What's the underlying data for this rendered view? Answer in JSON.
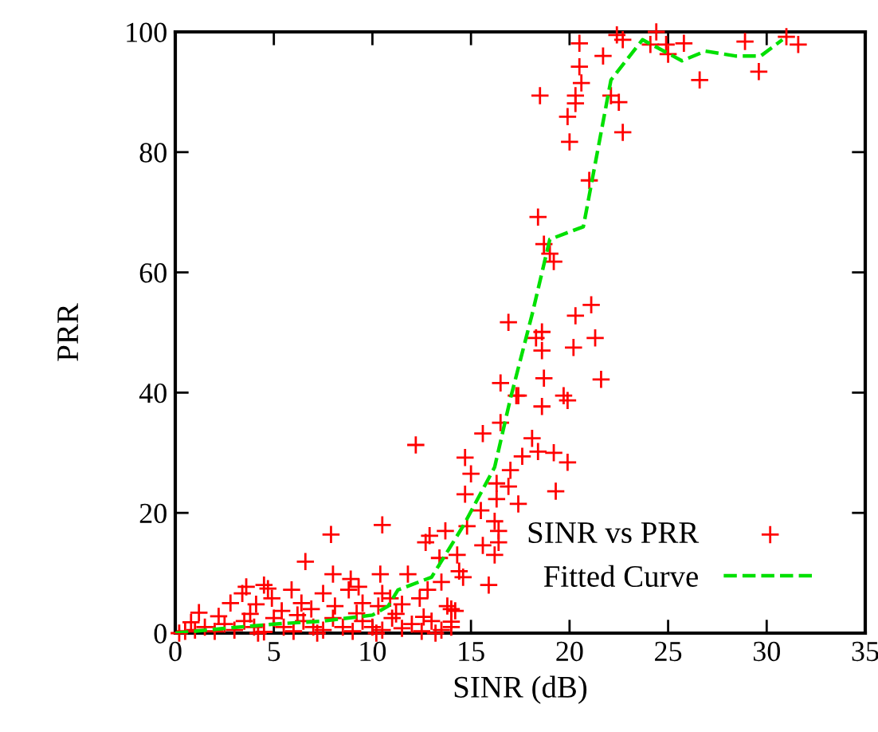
{
  "chart_data": {
    "type": "scatter",
    "xlabel": "SINR (dB)",
    "ylabel": "PRR",
    "xlim": [
      0,
      35
    ],
    "ylim": [
      0,
      100
    ],
    "xticks": [
      0,
      5,
      10,
      15,
      20,
      25,
      30,
      35
    ],
    "yticks": [
      0,
      20,
      40,
      60,
      80,
      100
    ],
    "grid": false,
    "legend": "bottom right",
    "series": [
      {
        "name": "SINR vs PRR",
        "marker": "cross",
        "color": "#ff0000",
        "x": [
          20.5,
          22.4,
          22.7,
          24.4,
          24.1,
          24.9,
          25.0,
          25.8,
          28.9,
          29.6,
          31.0,
          31.6,
          26.6,
          21.7,
          20.5,
          20.6,
          18.5,
          20.3,
          20.3,
          22.1,
          22.5,
          19.9,
          20.0,
          22.7,
          21.0,
          18.4,
          18.7,
          19.0,
          19.2,
          21.1,
          20.3,
          21.3,
          18.3,
          18.6,
          18.6,
          20.2,
          21.6,
          18.7,
          19.7,
          19.9,
          18.6,
          17.4,
          16.9,
          16.5,
          17.3,
          16.5,
          15.6,
          18.1,
          18.4,
          19.2,
          17.6,
          19.9,
          14.7,
          12.2,
          15.0,
          17.0,
          16.3,
          16.9,
          19.3,
          14.7,
          16.3,
          17.4,
          15.5,
          16.2,
          14.8,
          16.4,
          13.7,
          12.9,
          12.7,
          15.6,
          16.4,
          16.2,
          13.4,
          14.3,
          14.4,
          14.6,
          13.5,
          11.8,
          15.9,
          14.0,
          14.0,
          12.6,
          7.9,
          10.5,
          6.6,
          8.0,
          8.9,
          10.4,
          8.8,
          4.5,
          4.7,
          3.6,
          5.9,
          3.4,
          2.8,
          4.1,
          4.9,
          5.4,
          7.5,
          9.3,
          6.4,
          1.2,
          6.9,
          8.1,
          9.5,
          10.5,
          10.9,
          10.3,
          11.5,
          12.4,
          12.8,
          13.8,
          14.2,
          0.2,
          0.5,
          1.0,
          1.5,
          2.0,
          2.5,
          3.0,
          3.5,
          4.0,
          4.5,
          5.0,
          5.5,
          6.0,
          6.5,
          7.0,
          7.5,
          8.0,
          8.5,
          9.0,
          9.5,
          10.0,
          10.5,
          11.0,
          11.5,
          12.0,
          12.5,
          13.0,
          13.5,
          14.0,
          0.8,
          2.2,
          3.8,
          6.2,
          9.2,
          11.2,
          4.2,
          7.2,
          10.2,
          13.2
        ],
        "values": [
          98.1,
          99.5,
          98.7,
          100,
          97.9,
          97.9,
          96.3,
          98.1,
          98.4,
          93.4,
          99.2,
          97.9,
          92.0,
          96.0,
          94.2,
          91.5,
          89.4,
          89.4,
          88.1,
          89.4,
          88.3,
          85.9,
          81.7,
          83.3,
          75.3,
          69.2,
          64.7,
          63.1,
          61.8,
          54.6,
          52.8,
          49.1,
          49.1,
          50.1,
          47.0,
          47.5,
          42.2,
          42.4,
          39.5,
          38.7,
          37.7,
          39.5,
          51.7,
          41.6,
          39.5,
          35.0,
          33.2,
          32.4,
          30.2,
          30.0,
          29.4,
          28.4,
          29.2,
          31.3,
          26.5,
          27.1,
          24.9,
          24.4,
          23.6,
          23.1,
          22.3,
          21.5,
          20.4,
          18.6,
          17.8,
          17.0,
          17.0,
          16.2,
          15.1,
          14.6,
          15.1,
          13.0,
          12.5,
          13.0,
          10.3,
          9.3,
          8.5,
          9.8,
          8.0,
          4.0,
          1.9,
          2.7,
          16.4,
          18.0,
          11.9,
          9.8,
          9.0,
          9.8,
          7.2,
          8.0,
          7.4,
          7.7,
          7.2,
          6.6,
          5.0,
          4.8,
          5.8,
          3.7,
          6.6,
          7.7,
          5.0,
          3.4,
          4.0,
          4.5,
          5.0,
          6.6,
          5.8,
          4.5,
          4.8,
          5.8,
          7.2,
          4.5,
          3.7,
          0,
          0.3,
          0.5,
          1.0,
          0.3,
          1.5,
          0.5,
          2.0,
          1.0,
          0.2,
          2.5,
          1.0,
          0.3,
          2.0,
          1.0,
          0.5,
          2.5,
          1.0,
          0.3,
          2.0,
          1.0,
          0.5,
          2.5,
          0.8,
          1.5,
          0.3,
          2.0,
          0.5,
          1.0,
          1.8,
          2.8,
          3.2,
          3.0,
          3.3,
          3.2,
          0,
          0,
          0,
          0
        ]
      },
      {
        "name": "Fitted Curve",
        "type": "line",
        "line_style": "dashed",
        "marker": "none",
        "color": "#00e000",
        "x": [
          0,
          2.5,
          5,
          7.5,
          10,
          10.8,
          11.3,
          13.0,
          14.6,
          16.2,
          17.0,
          18.1,
          19.0,
          20.7,
          22.1,
          23.7,
          25.7,
          26.9,
          28.4,
          29.7,
          30.8
        ],
        "values": [
          0,
          0.8,
          1.5,
          2,
          3,
          4.5,
          7.2,
          9.3,
          17.8,
          27.6,
          39,
          53,
          65.5,
          67.6,
          92,
          98.7,
          95.2,
          96.8,
          96,
          96,
          98.7
        ]
      }
    ]
  }
}
